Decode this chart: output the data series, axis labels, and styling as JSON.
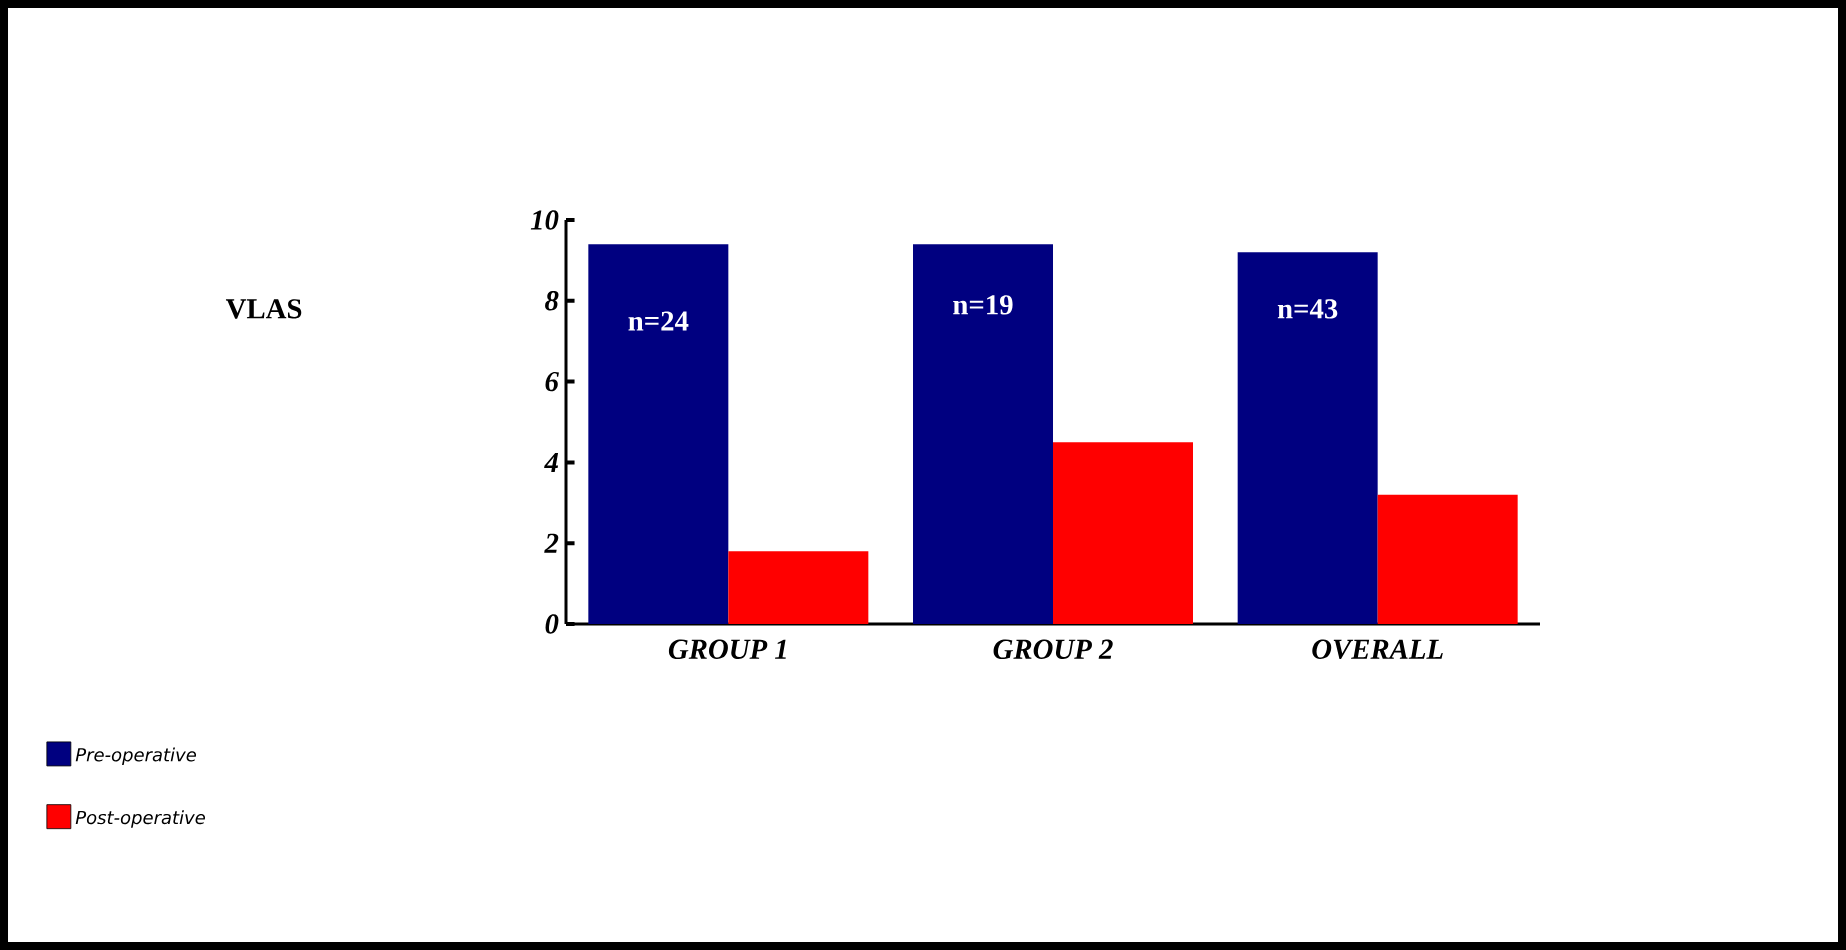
{
  "chart_data": {
    "type": "bar",
    "categories": [
      "GROUP 1",
      "GROUP 2",
      "OVERALL"
    ],
    "series": [
      {
        "name": "Pre-operative",
        "color": "#000080",
        "values": [
          9.4,
          9.4,
          9.2
        ]
      },
      {
        "name": "Post-operative",
        "color": "#ff0000",
        "values": [
          1.8,
          4.5,
          3.2
        ]
      }
    ],
    "ylim": [
      0,
      10
    ],
    "yticks": [
      0,
      2,
      4,
      6,
      8,
      10
    ],
    "grid": false,
    "legend": "bottom left",
    "annotations": [
      "VLAS",
      {
        "text": "n=24",
        "x": "GROUP 1",
        "y": 7.5
      },
      {
        "text": "n=19",
        "x": "GROUP 2",
        "y": 7.9
      },
      {
        "text": "n=43",
        "x": "OVERALL",
        "y": 7.8
      }
    ]
  }
}
